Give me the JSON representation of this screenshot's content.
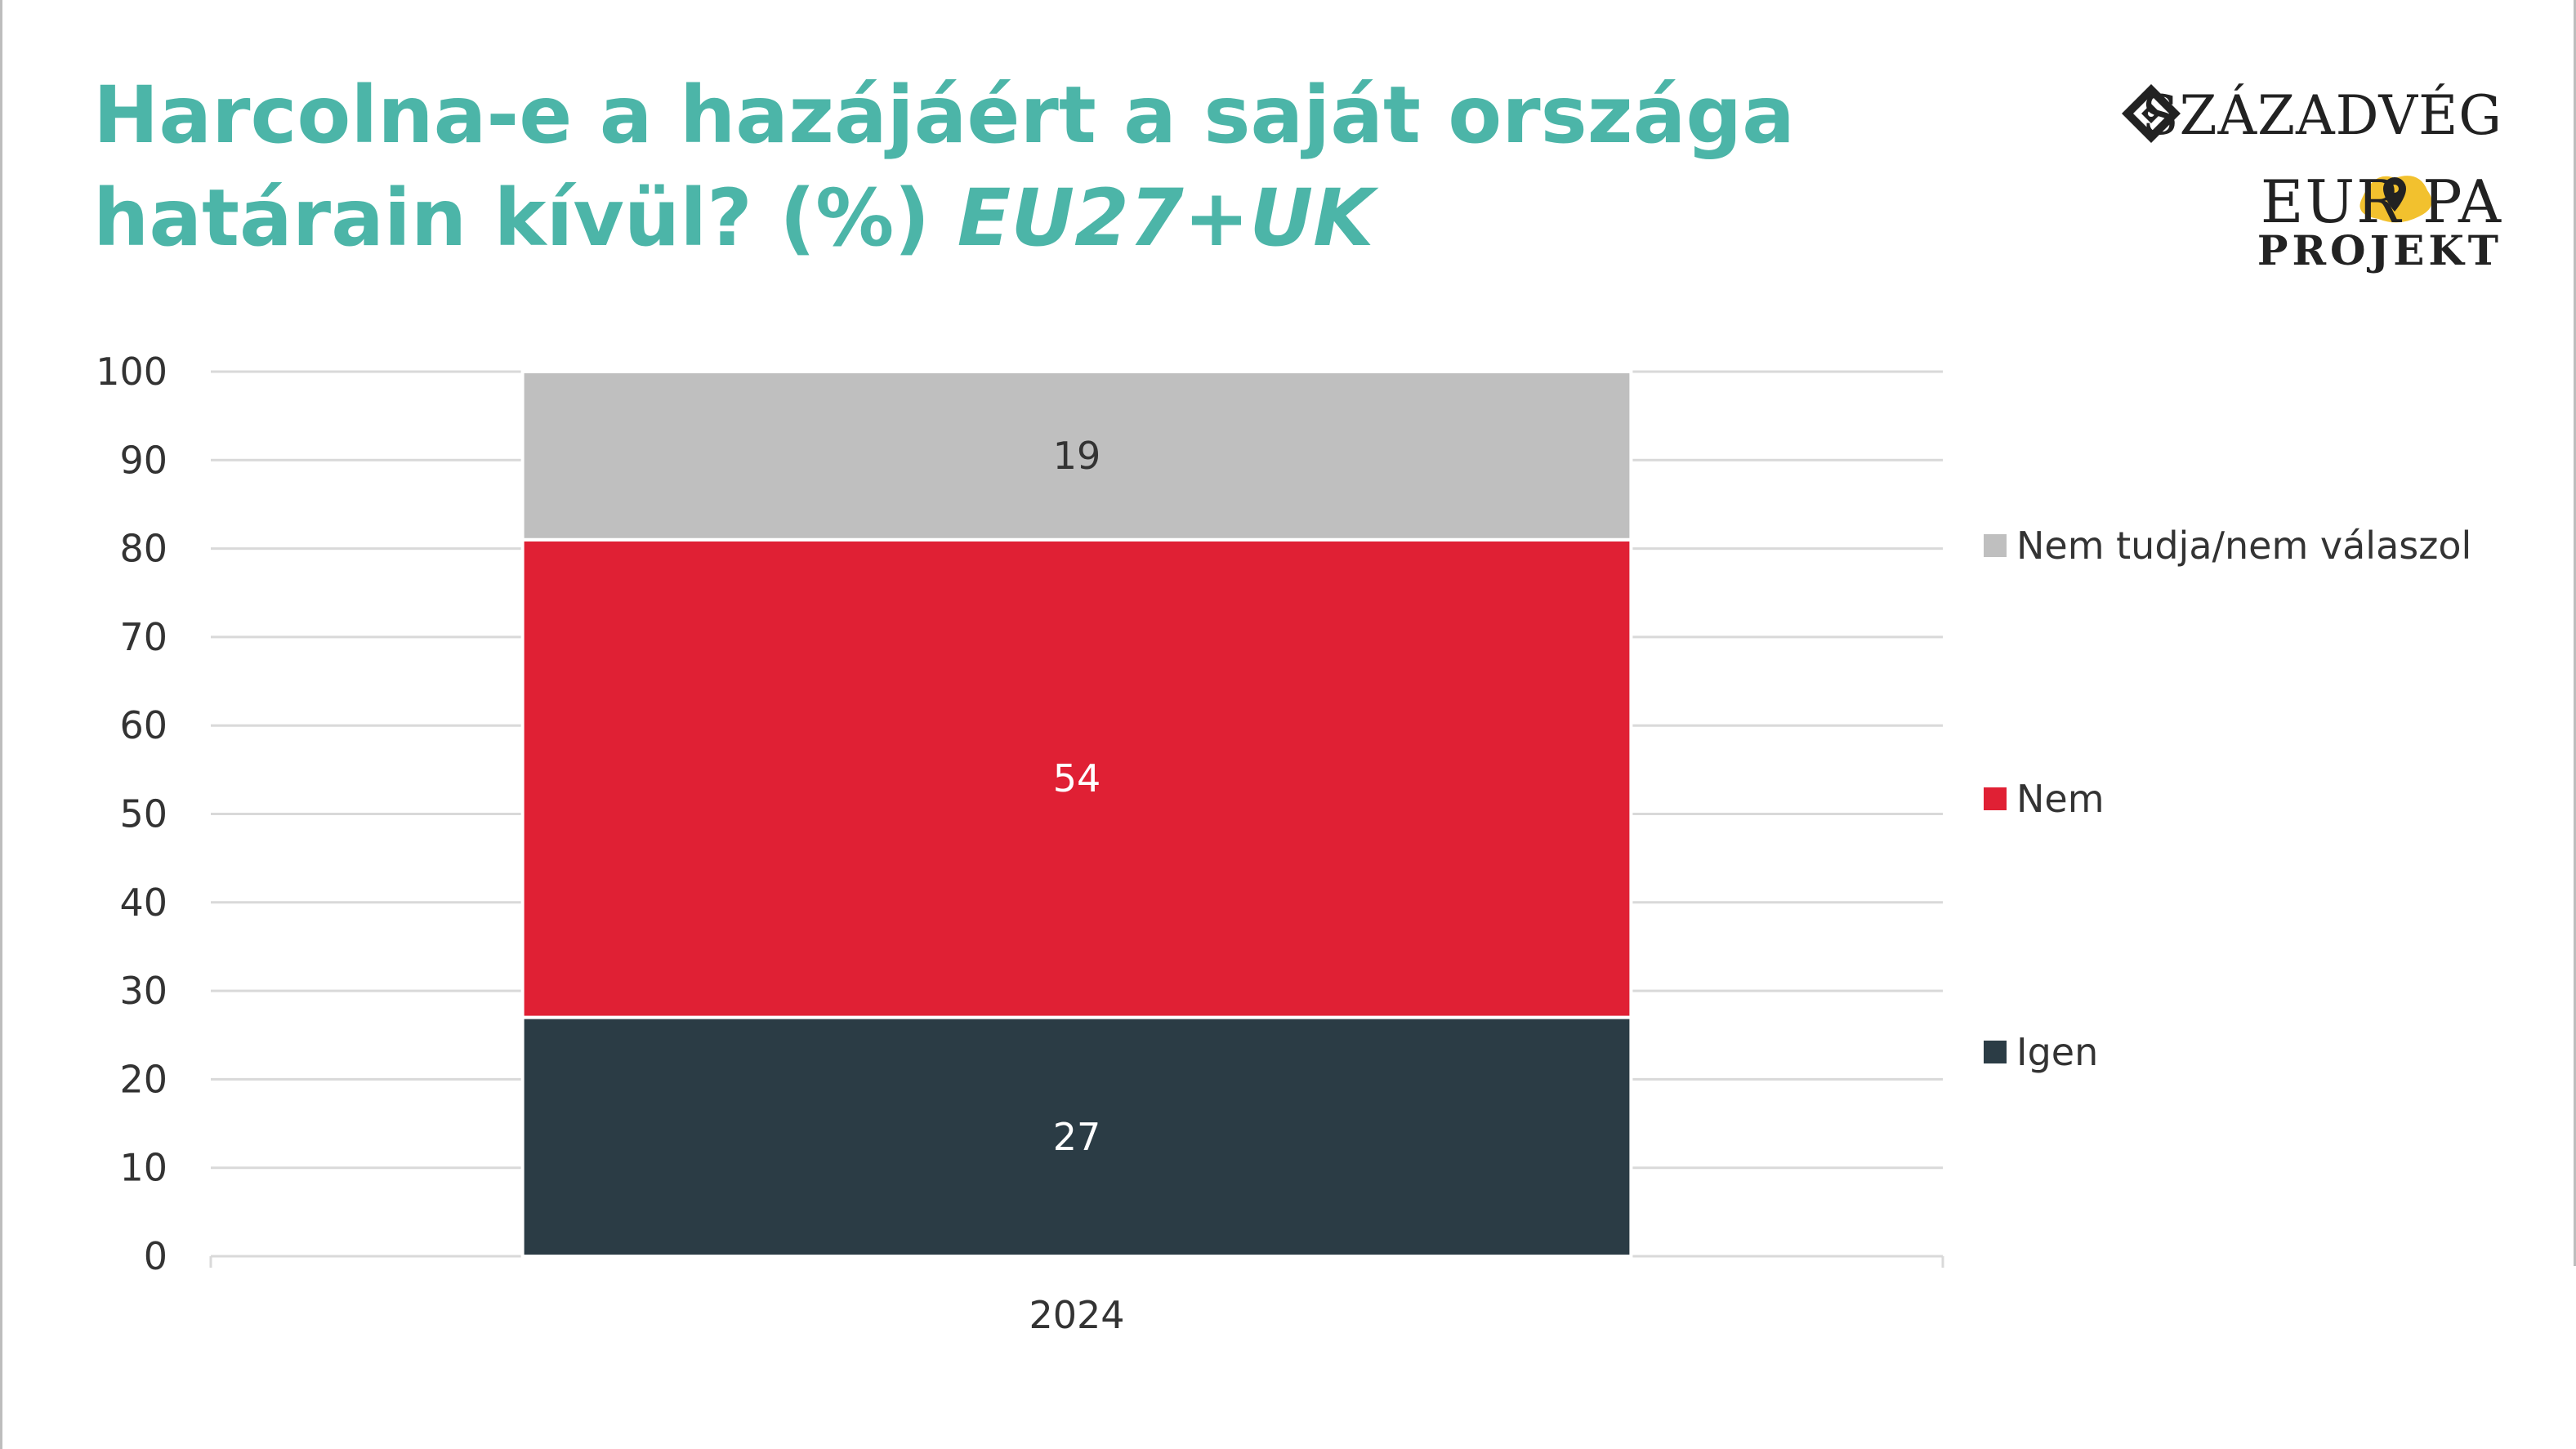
{
  "header": {
    "title_main": "Harcolna-e a hazájáért a saját országa határain kívül? (%)",
    "title_italic": "EU27+UK"
  },
  "logo": {
    "brand": "SZÁZADVÉG",
    "europa": "EUR PA",
    "projekt": "PROJEKT"
  },
  "chart_data": {
    "type": "bar",
    "stacked": true,
    "categories": [
      "2024"
    ],
    "series": [
      {
        "name": "Igen",
        "values": [
          27
        ],
        "color": "#2b3c45"
      },
      {
        "name": "Nem",
        "values": [
          54
        ],
        "color": "#e02034"
      },
      {
        "name": "Nem tudja/nem válaszol",
        "values": [
          19
        ],
        "color": "#bfbfbf"
      }
    ],
    "ylim": [
      0,
      100
    ],
    "yticks": [
      0,
      10,
      20,
      30,
      40,
      50,
      60,
      70,
      80,
      90,
      100
    ],
    "grid": true,
    "legend": "right"
  }
}
